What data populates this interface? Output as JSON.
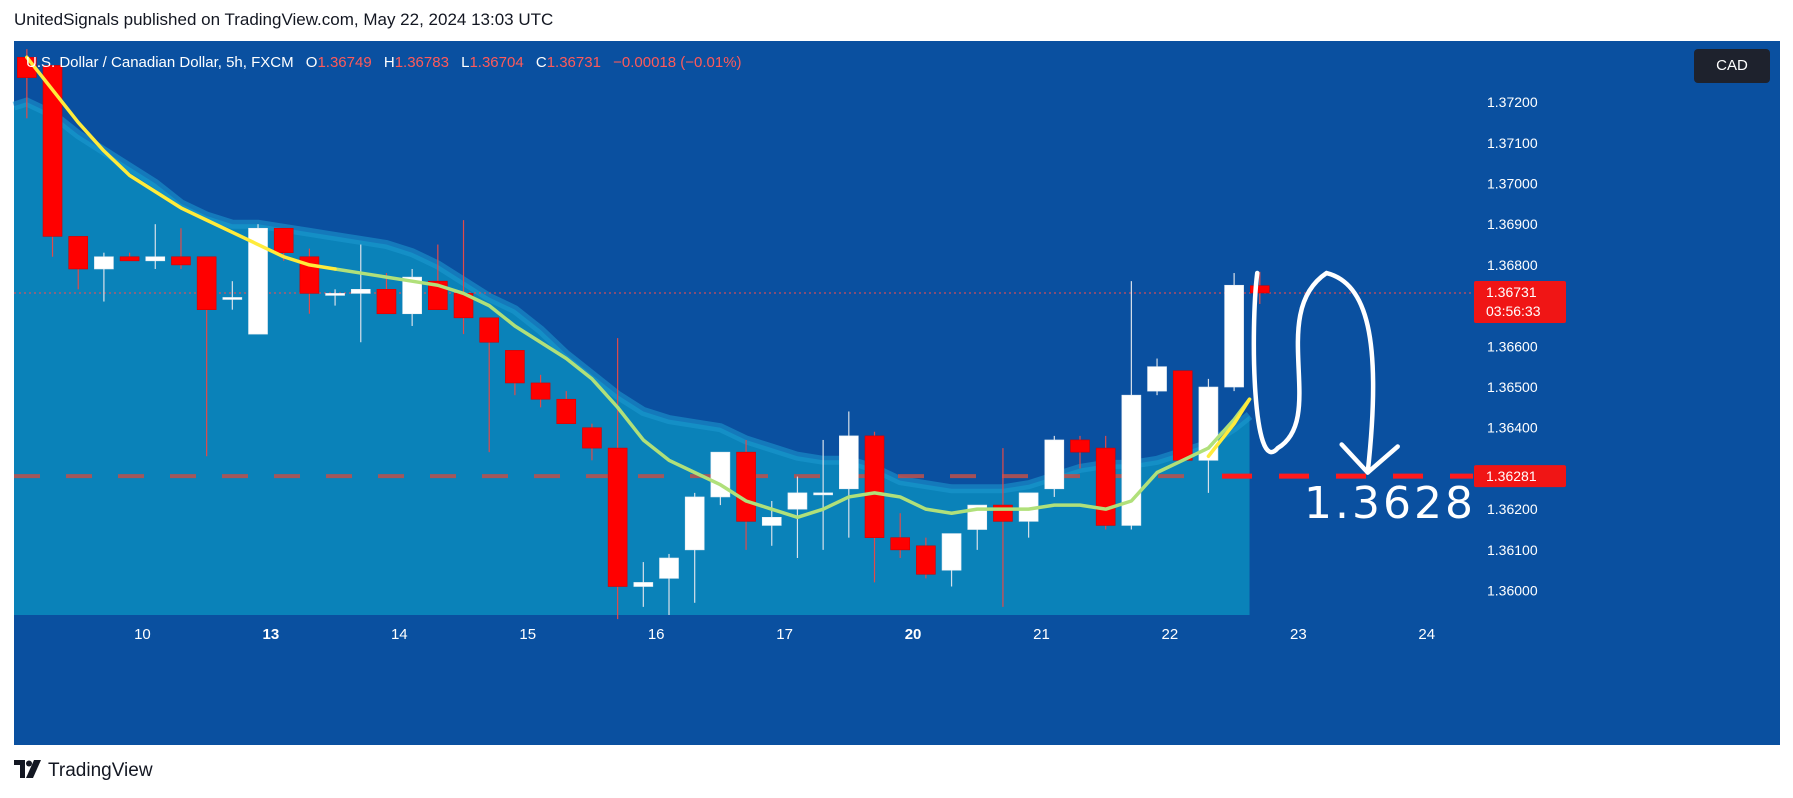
{
  "header": {
    "published_by": "UnitedSignals published on TradingView.com, May 22, 2024 13:03 UTC"
  },
  "legend": {
    "symbol": "U.S. Dollar / Canadian Dollar, 5h, FXCM",
    "open_label": "O",
    "open": "1.36749",
    "high_label": "H",
    "high": "1.36783",
    "low_label": "L",
    "low": "1.36704",
    "close_label": "C",
    "close": "1.36731",
    "change": "−0.00018 (−0.01%)"
  },
  "currency_chip": "CAD",
  "footer": {
    "brand": "TradingView"
  },
  "colors": {
    "background": "#0a50a0",
    "area_fill": "#0a82b9",
    "area_edge": "#1e9ad2",
    "up_candle": "#ffffff",
    "down_candle": "#ff0000",
    "wick": "#d9e1ea",
    "ma_yellow": "#ffeb3b",
    "ma_green": "#b0e07a",
    "level_line": "#ff1a1a"
  },
  "chart_data": {
    "type": "candlestick",
    "title": "U.S. Dollar / Canadian Dollar, 5h, FXCM",
    "ylim": [
      1.3594,
      1.3735
    ],
    "y_ticks": [
      "1.37200",
      "1.37100",
      "1.37000",
      "1.36900",
      "1.36800",
      "1.36600",
      "1.36500",
      "1.36400",
      "1.36200",
      "1.36100",
      "1.36000"
    ],
    "x_ticks": [
      {
        "label": "10",
        "bold": false,
        "x": 4.5
      },
      {
        "label": "13",
        "bold": true,
        "x": 9.5
      },
      {
        "label": "14",
        "bold": false,
        "x": 14.5
      },
      {
        "label": "15",
        "bold": false,
        "x": 19.5
      },
      {
        "label": "16",
        "bold": false,
        "x": 24.5
      },
      {
        "label": "17",
        "bold": false,
        "x": 29.5
      },
      {
        "label": "20",
        "bold": true,
        "x": 34.5
      },
      {
        "label": "21",
        "bold": false,
        "x": 39.5
      },
      {
        "label": "22",
        "bold": false,
        "x": 44.5
      },
      {
        "label": "23",
        "bold": false,
        "x": 49.5
      },
      {
        "label": "24",
        "bold": false,
        "x": 54.5
      }
    ],
    "x_range": [
      -0.5,
      56.3
    ],
    "candles": [
      {
        "o": 1.3731,
        "h": 1.3733,
        "l": 1.3716,
        "c": 1.3726
      },
      {
        "o": 1.3729,
        "h": 1.3729,
        "l": 1.3682,
        "c": 1.3687
      },
      {
        "o": 1.3687,
        "h": 1.3687,
        "l": 1.3674,
        "c": 1.3679
      },
      {
        "o": 1.3679,
        "h": 1.3683,
        "l": 1.3671,
        "c": 1.3682
      },
      {
        "o": 1.3682,
        "h": 1.3683,
        "l": 1.3681,
        "c": 1.3681
      },
      {
        "o": 1.3681,
        "h": 1.369,
        "l": 1.3679,
        "c": 1.3682
      },
      {
        "o": 1.3682,
        "h": 1.3689,
        "l": 1.3679,
        "c": 1.368
      },
      {
        "o": 1.3682,
        "h": 1.3682,
        "l": 1.3633,
        "c": 1.3669
      },
      {
        "o": 1.3672,
        "h": 1.3676,
        "l": 1.3669,
        "c": 1.3672
      },
      {
        "o": 1.3663,
        "h": 1.369,
        "l": 1.3663,
        "c": 1.3689
      },
      {
        "o": 1.3689,
        "h": 1.3689,
        "l": 1.3681,
        "c": 1.3683
      },
      {
        "o": 1.3682,
        "h": 1.3684,
        "l": 1.3668,
        "c": 1.3673
      },
      {
        "o": 1.3673,
        "h": 1.3674,
        "l": 1.367,
        "c": 1.3673
      },
      {
        "o": 1.3673,
        "h": 1.3685,
        "l": 1.3661,
        "c": 1.3674
      },
      {
        "o": 1.3674,
        "h": 1.3678,
        "l": 1.3668,
        "c": 1.3668
      },
      {
        "o": 1.3668,
        "h": 1.3679,
        "l": 1.3665,
        "c": 1.3677
      },
      {
        "o": 1.3676,
        "h": 1.3685,
        "l": 1.3669,
        "c": 1.3669
      },
      {
        "o": 1.3673,
        "h": 1.3691,
        "l": 1.3663,
        "c": 1.3667
      },
      {
        "o": 1.3667,
        "h": 1.3667,
        "l": 1.3634,
        "c": 1.3661
      },
      {
        "o": 1.3659,
        "h": 1.3659,
        "l": 1.3648,
        "c": 1.3651
      },
      {
        "o": 1.3651,
        "h": 1.3653,
        "l": 1.3645,
        "c": 1.3647
      },
      {
        "o": 1.3647,
        "h": 1.3649,
        "l": 1.3641,
        "c": 1.3641
      },
      {
        "o": 1.364,
        "h": 1.3641,
        "l": 1.3632,
        "c": 1.3635
      },
      {
        "o": 1.3635,
        "h": 1.3662,
        "l": 1.3593,
        "c": 1.3601
      },
      {
        "o": 1.3601,
        "h": 1.3607,
        "l": 1.3596,
        "c": 1.3602
      },
      {
        "o": 1.3603,
        "h": 1.3609,
        "l": 1.3594,
        "c": 1.3608
      },
      {
        "o": 1.361,
        "h": 1.3624,
        "l": 1.3597,
        "c": 1.3623
      },
      {
        "o": 1.3623,
        "h": 1.3633,
        "l": 1.3621,
        "c": 1.3634
      },
      {
        "o": 1.3634,
        "h": 1.3637,
        "l": 1.361,
        "c": 1.3617
      },
      {
        "o": 1.3616,
        "h": 1.3622,
        "l": 1.3611,
        "c": 1.3618
      },
      {
        "o": 1.362,
        "h": 1.3628,
        "l": 1.3608,
        "c": 1.3624
      },
      {
        "o": 1.3624,
        "h": 1.3637,
        "l": 1.361,
        "c": 1.3624
      },
      {
        "o": 1.3625,
        "h": 1.3644,
        "l": 1.3613,
        "c": 1.3638
      },
      {
        "o": 1.3638,
        "h": 1.3639,
        "l": 1.3602,
        "c": 1.3613
      },
      {
        "o": 1.3613,
        "h": 1.3619,
        "l": 1.3608,
        "c": 1.361
      },
      {
        "o": 1.3611,
        "h": 1.3613,
        "l": 1.3603,
        "c": 1.3604
      },
      {
        "o": 1.3605,
        "h": 1.3613,
        "l": 1.3601,
        "c": 1.3614
      },
      {
        "o": 1.3615,
        "h": 1.3621,
        "l": 1.361,
        "c": 1.3621
      },
      {
        "o": 1.3621,
        "h": 1.3635,
        "l": 1.3596,
        "c": 1.3617
      },
      {
        "o": 1.3617,
        "h": 1.3623,
        "l": 1.3613,
        "c": 1.3624
      },
      {
        "o": 1.3625,
        "h": 1.3638,
        "l": 1.3623,
        "c": 1.3637
      },
      {
        "o": 1.3637,
        "h": 1.3638,
        "l": 1.363,
        "c": 1.3634
      },
      {
        "o": 1.3635,
        "h": 1.3638,
        "l": 1.3615,
        "c": 1.3616
      },
      {
        "o": 1.3616,
        "h": 1.3676,
        "l": 1.3615,
        "c": 1.3648
      },
      {
        "o": 1.3649,
        "h": 1.3657,
        "l": 1.3648,
        "c": 1.3655
      },
      {
        "o": 1.3654,
        "h": 1.3654,
        "l": 1.3632,
        "c": 1.3632
      },
      {
        "o": 1.3632,
        "h": 1.3652,
        "l": 1.3624,
        "c": 1.365
      },
      {
        "o": 1.365,
        "h": 1.3678,
        "l": 1.3649,
        "c": 1.3675
      },
      {
        "o": 1.36749,
        "h": 1.36783,
        "l": 1.36704,
        "c": 1.36731
      }
    ],
    "ma_yellow": [
      [
        0,
        1.3731
      ],
      [
        1,
        1.3723
      ],
      [
        2,
        1.3715
      ],
      [
        3,
        1.3708
      ],
      [
        4,
        1.3702
      ],
      [
        5,
        1.3698
      ],
      [
        6,
        1.3694
      ],
      [
        7,
        1.3691
      ],
      [
        8,
        1.3688
      ],
      [
        9,
        1.3685
      ],
      [
        10,
        1.3682
      ],
      [
        11,
        1.368
      ],
      [
        12,
        1.3679
      ]
    ],
    "ma_green": [
      [
        12,
        1.3679
      ],
      [
        13,
        1.3678
      ],
      [
        14,
        1.3677
      ],
      [
        15,
        1.3676
      ],
      [
        16,
        1.3675
      ],
      [
        17,
        1.3673
      ],
      [
        18,
        1.367
      ],
      [
        19,
        1.3665
      ],
      [
        20,
        1.3661
      ],
      [
        21,
        1.3657
      ],
      [
        22,
        1.3652
      ],
      [
        23,
        1.3645
      ],
      [
        24,
        1.3637
      ],
      [
        25,
        1.3632
      ],
      [
        26,
        1.3629
      ],
      [
        27,
        1.3626
      ],
      [
        28,
        1.3622
      ],
      [
        29,
        1.362
      ],
      [
        30,
        1.3618
      ],
      [
        31,
        1.362
      ],
      [
        32,
        1.3623
      ],
      [
        33,
        1.3624
      ],
      [
        34,
        1.3623
      ],
      [
        35,
        1.362
      ],
      [
        36,
        1.3619
      ],
      [
        37,
        1.362
      ],
      [
        38,
        1.362
      ],
      [
        39,
        1.362
      ],
      [
        40,
        1.3621
      ],
      [
        41,
        1.3621
      ],
      [
        42,
        1.362
      ],
      [
        43,
        1.3622
      ],
      [
        44,
        1.3629
      ],
      [
        45,
        1.3632
      ],
      [
        46,
        1.3635
      ],
      [
        47,
        1.3642
      ],
      [
        47.6,
        1.3647
      ]
    ],
    "ma_yellow_tail": [
      [
        46,
        1.3633
      ],
      [
        47,
        1.3641
      ],
      [
        47.6,
        1.3647
      ]
    ],
    "area_top": [
      [
        -0.5,
        1.3719
      ],
      [
        0,
        1.372
      ],
      [
        1,
        1.3717
      ],
      [
        2,
        1.3712
      ],
      [
        3,
        1.3708
      ],
      [
        4,
        1.3704
      ],
      [
        5,
        1.37
      ],
      [
        6,
        1.3695
      ],
      [
        7,
        1.3692
      ],
      [
        8,
        1.369
      ],
      [
        9,
        1.369
      ],
      [
        10,
        1.3689
      ],
      [
        11,
        1.3688
      ],
      [
        12,
        1.3687
      ],
      [
        13,
        1.3686
      ],
      [
        14,
        1.3685
      ],
      [
        15,
        1.3683
      ],
      [
        16,
        1.368
      ],
      [
        17,
        1.3676
      ],
      [
        18,
        1.3672
      ],
      [
        19,
        1.3669
      ],
      [
        20,
        1.3664
      ],
      [
        21,
        1.3658
      ],
      [
        22,
        1.3653
      ],
      [
        23,
        1.3648
      ],
      [
        24,
        1.3644
      ],
      [
        25,
        1.3642
      ],
      [
        26,
        1.3641
      ],
      [
        27,
        1.364
      ],
      [
        28,
        1.3637
      ],
      [
        29,
        1.3635
      ],
      [
        30,
        1.3633
      ],
      [
        31,
        1.3632
      ],
      [
        32,
        1.3632
      ],
      [
        33,
        1.363
      ],
      [
        34,
        1.3627
      ],
      [
        35,
        1.3626
      ],
      [
        36,
        1.3625
      ],
      [
        37,
        1.3625
      ],
      [
        38,
        1.3625
      ],
      [
        39,
        1.3626
      ],
      [
        40,
        1.3628
      ],
      [
        41,
        1.363
      ],
      [
        42,
        1.3631
      ],
      [
        43,
        1.3631
      ],
      [
        44,
        1.3632
      ],
      [
        45,
        1.3634
      ],
      [
        46,
        1.3636
      ],
      [
        47,
        1.364
      ],
      [
        47.6,
        1.3643
      ]
    ],
    "area_end_x": 47.6,
    "current_price": {
      "value": 1.36731,
      "label": "1.36731",
      "countdown": "03:56:33"
    },
    "level": {
      "value": 1.36281,
      "label": "1.36281",
      "annotation": "1.3628"
    },
    "projection_path": [
      [
        47.9,
        1.3678
      ],
      [
        48.1,
        1.363
      ],
      [
        48.7,
        1.3635
      ],
      [
        50.6,
        1.3678
      ],
      [
        52.0,
        1.3672
      ],
      [
        52.2,
        1.3629
      ]
    ]
  }
}
